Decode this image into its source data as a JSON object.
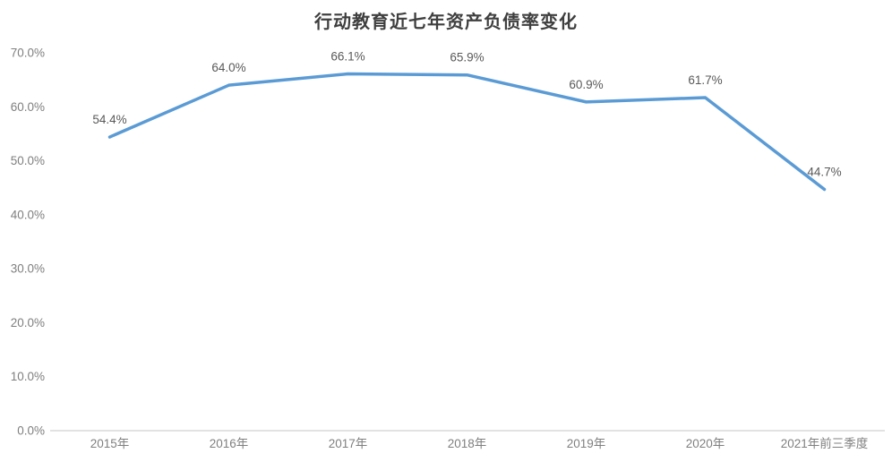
{
  "title": "行动教育近七年资产负债率变化",
  "chart_data": {
    "type": "line",
    "title": "行动教育近七年资产负债率变化",
    "categories": [
      "2015年",
      "2016年",
      "2017年",
      "2018年",
      "2019年",
      "2020年",
      "2021年前三季度"
    ],
    "values": [
      54.4,
      64.0,
      66.1,
      65.9,
      60.9,
      61.7,
      44.7
    ],
    "data_labels": [
      "54.4%",
      "64.0%",
      "66.1%",
      "65.9%",
      "60.9%",
      "61.7%",
      "44.7%"
    ],
    "ytick_labels": [
      "0.0%",
      "10.0%",
      "20.0%",
      "30.0%",
      "40.0%",
      "50.0%",
      "60.0%",
      "70.0%"
    ],
    "ytick_values": [
      0,
      10,
      20,
      30,
      40,
      50,
      60,
      70
    ],
    "ylim": [
      0,
      70
    ],
    "xlabel": "",
    "ylabel": "",
    "grid": false,
    "legend": "none",
    "colors": {
      "line": "#5B9BD5",
      "data_label": "#595959",
      "axis_label": "#7f7f7f",
      "axis_line": "#d9d9d9",
      "title": "#3f3f3f",
      "background": "#ffffff"
    }
  }
}
